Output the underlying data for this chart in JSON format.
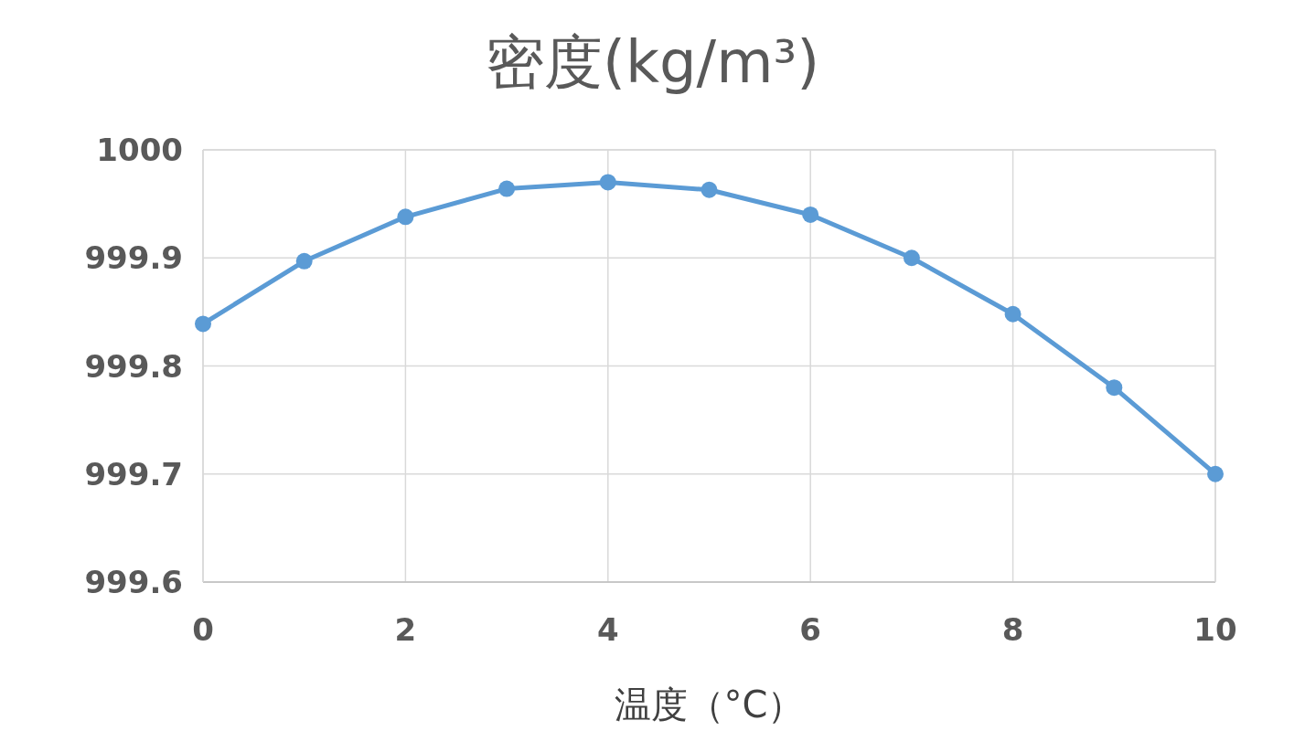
{
  "chart_data": {
    "type": "line",
    "title": "密度(kg/m³)",
    "xlabel": "温度（°C）",
    "x": [
      0,
      1,
      2,
      3,
      4,
      5,
      6,
      7,
      8,
      9,
      10
    ],
    "series": [
      {
        "color": "#5b9bd5",
        "values": [
          999.839,
          999.897,
          999.938,
          999.964,
          999.97,
          999.963,
          999.94,
          999.9,
          999.848,
          999.78,
          999.7
        ]
      }
    ],
    "xlim": [
      0,
      10
    ],
    "xticks": [
      0,
      2,
      4,
      6,
      8,
      10
    ],
    "ylim": [
      999.6,
      1000
    ],
    "yticks": [
      999.6,
      999.7,
      999.8,
      999.9,
      1000
    ],
    "grid": true,
    "marker": "circle",
    "line_style": "solid"
  }
}
